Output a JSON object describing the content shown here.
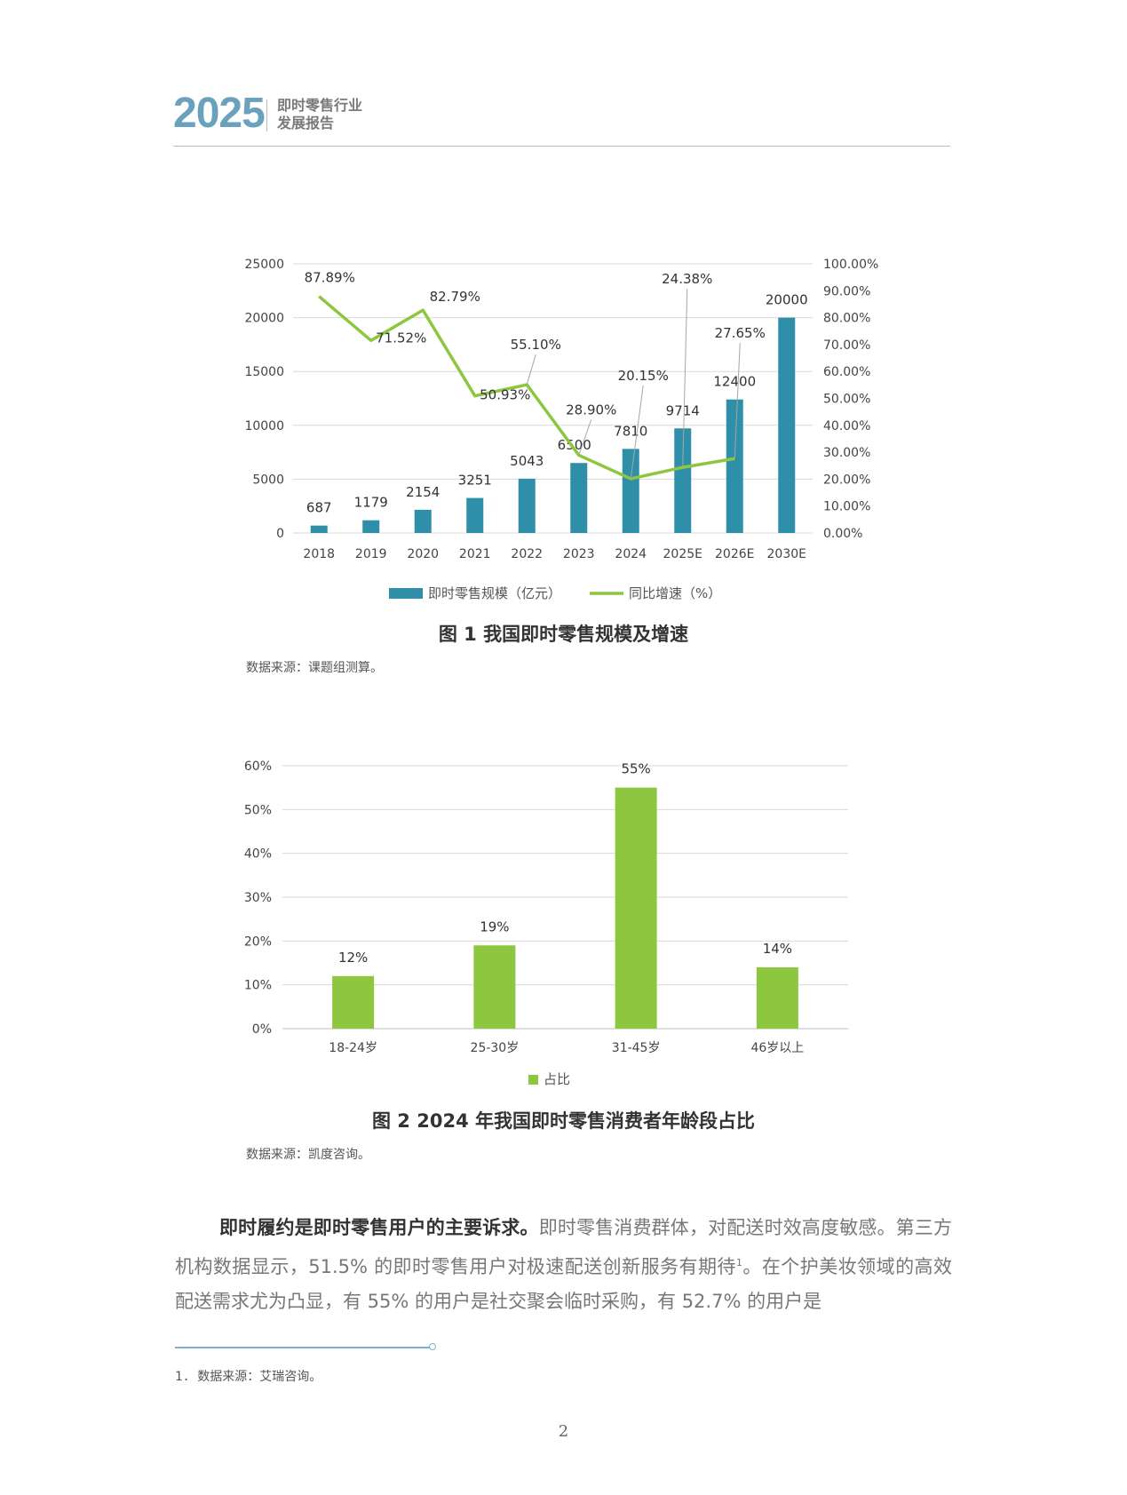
{
  "header": {
    "year": "2025",
    "title_line1": "即时零售行业",
    "title_line2": "发展报告"
  },
  "figure1": {
    "caption": "图 1  我国即时零售规模及增速",
    "source": "数据来源：课题组测算。",
    "legend_bar": "即时零售规模（亿元）",
    "legend_line": "同比增速（%）",
    "bar_color": "#2f8fa8",
    "line_color": "#8dc63f",
    "chart_data": {
      "type": "bar+line",
      "categories": [
        "2018",
        "2019",
        "2020",
        "2021",
        "2022",
        "2023",
        "2024",
        "2025E",
        "2026E",
        "2030E"
      ],
      "series": [
        {
          "name": "即时零售规模（亿元）",
          "type": "bar",
          "axis": "left",
          "values": [
            687,
            1179,
            2154,
            3251,
            5043,
            6500,
            7810,
            9714,
            12400,
            20000
          ],
          "labels": [
            "687",
            "1179",
            "2154",
            "3251",
            "5043",
            "6500",
            "7810",
            "9714",
            "12400",
            "20000"
          ]
        },
        {
          "name": "同比增速（%）",
          "type": "line",
          "axis": "right",
          "values": [
            87.89,
            71.52,
            82.79,
            50.93,
            55.1,
            28.9,
            20.15,
            24.38,
            27.65,
            null
          ],
          "labels": [
            "87.89%",
            "71.52%",
            "82.79%",
            "50.93%",
            "55.10%",
            "28.90%",
            "20.15%",
            "24.38%",
            "27.65%",
            ""
          ]
        }
      ],
      "left_ticks": [
        "0",
        "5000",
        "10000",
        "15000",
        "20000",
        "25000"
      ],
      "right_ticks": [
        "0.00%",
        "10.00%",
        "20.00%",
        "30.00%",
        "40.00%",
        "50.00%",
        "60.00%",
        "70.00%",
        "80.00%",
        "90.00%",
        "100.00%"
      ],
      "ylim_left": [
        0,
        25000
      ],
      "ylim_right": [
        0,
        100
      ],
      "grid": true,
      "legend_position": "bottom"
    }
  },
  "figure2": {
    "caption": "图 2  2024 年我国即时零售消费者年龄段占比",
    "source": "数据来源：凯度咨询。",
    "legend": "占比",
    "bar_color": "#8dc63f",
    "chart_data": {
      "type": "bar",
      "categories": [
        "18-24岁",
        "25-30岁",
        "31-45岁",
        "46岁以上"
      ],
      "series": [
        {
          "name": "占比",
          "values": [
            12,
            19,
            55,
            14
          ],
          "labels": [
            "12%",
            "19%",
            "55%",
            "14%"
          ]
        }
      ],
      "ticks": [
        "0%",
        "10%",
        "20%",
        "30%",
        "40%",
        "50%",
        "60%"
      ],
      "ylim": [
        0,
        60
      ],
      "grid": true,
      "legend_position": "bottom"
    }
  },
  "body": {
    "lead": "即时履约是即时零售用户的主要诉求。",
    "text_a": "即时零售消费群体，对配送时效高度敏感。第三方机构数据显示，51.5% 的即时零售用户对极速配送创新服务有期待",
    "sup": "1",
    "text_b": "。在个护美妆领域的高效配送需求尤为凸显，有 55% 的用户是社交聚会临时采购，有 52.7% 的用户是"
  },
  "footnote": "1. 数据来源：艾瑞咨询。",
  "page_number": "2"
}
